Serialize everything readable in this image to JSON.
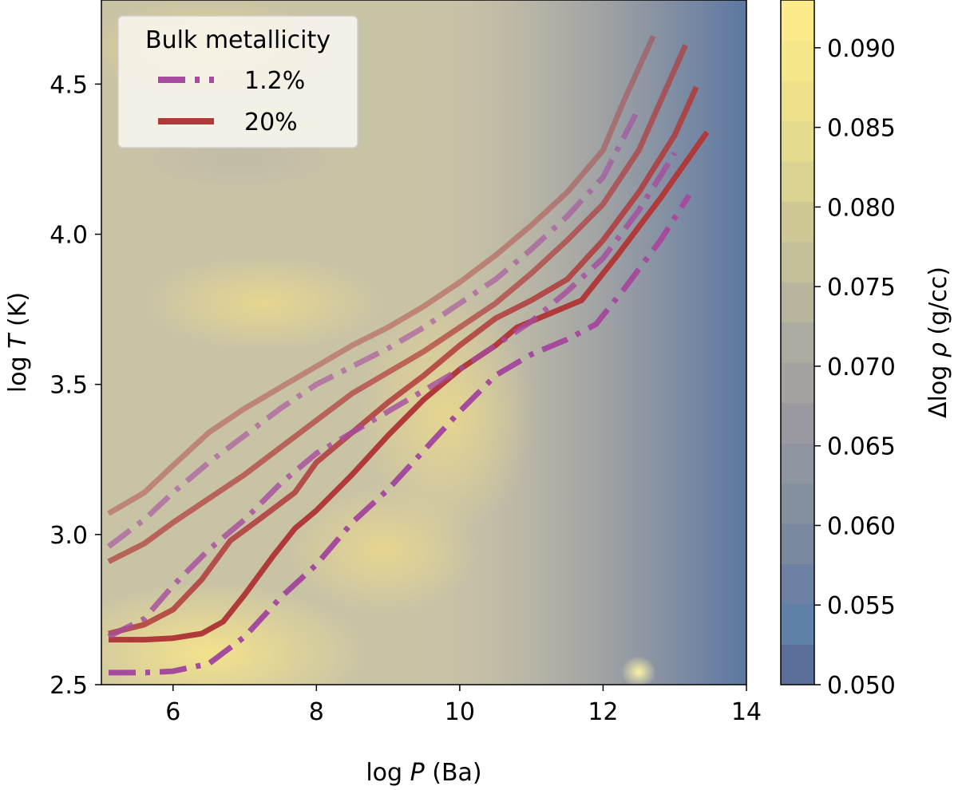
{
  "chart_data": {
    "type": "line",
    "xlabel_base": "log",
    "xlabel_var": "P",
    "xlabel_unit": "(Ba)",
    "ylabel_base": "log",
    "ylabel_var": "T",
    "ylabel_unit": "(K)",
    "colorbar_label_prefix": "Δlog",
    "colorbar_label_var": "ρ",
    "colorbar_label_unit": "(g/cc)",
    "xlim": [
      5,
      14
    ],
    "ylim": [
      2.5,
      4.78
    ],
    "xticks": [
      "6",
      "8",
      "10",
      "12",
      "14"
    ],
    "xtick_values": [
      6,
      8,
      10,
      12,
      14
    ],
    "yticks": [
      "2.5",
      "3.0",
      "3.5",
      "4.0",
      "4.5"
    ],
    "ytick_values": [
      2.5,
      3.0,
      3.5,
      4.0,
      4.5
    ],
    "colorbar_range": [
      0.05,
      0.093
    ],
    "colorbar_ticks": [
      "0.050",
      "0.055",
      "0.060",
      "0.065",
      "0.070",
      "0.075",
      "0.080",
      "0.085",
      "0.090"
    ],
    "colorbar_tick_values": [
      0.05,
      0.055,
      0.06,
      0.065,
      0.07,
      0.075,
      0.08,
      0.085,
      0.09
    ],
    "colors": {
      "metal_1_2": "#a54b9e",
      "metal_20": "#b03a3a",
      "cmap_low": "#5a7099",
      "cmap_mid": "#b2b0a6",
      "cmap_high": "#f8e88a"
    },
    "legend": {
      "title": "Bulk metallicity",
      "entries": [
        {
          "label": "1.2%",
          "style": "dashdot",
          "color": "#a54b9e"
        },
        {
          "label": "20%",
          "style": "solid",
          "color": "#b03a3a"
        }
      ]
    },
    "series": [
      {
        "name": "20%",
        "style": "solid",
        "opacity": 1.0,
        "x": [
          5.1,
          5.6,
          6.0,
          6.4,
          6.7,
          7.0,
          7.4,
          7.7,
          8.0,
          8.5,
          9.0,
          9.5,
          10.0,
          10.5,
          10.8,
          11.2,
          11.7,
          12.2,
          12.8,
          13.45
        ],
        "y": [
          2.65,
          2.65,
          2.655,
          2.67,
          2.71,
          2.8,
          2.93,
          3.02,
          3.08,
          3.2,
          3.33,
          3.45,
          3.55,
          3.63,
          3.69,
          3.73,
          3.78,
          3.93,
          4.12,
          4.34
        ]
      },
      {
        "name": "1.2%",
        "style": "dashdot",
        "opacity": 1.0,
        "x": [
          5.1,
          5.6,
          6.0,
          6.5,
          7.0,
          7.5,
          8.0,
          8.5,
          9.0,
          9.5,
          10.0,
          10.5,
          11.0,
          11.5,
          11.9,
          12.3,
          12.8,
          13.2
        ],
        "y": [
          2.54,
          2.54,
          2.545,
          2.57,
          2.66,
          2.79,
          2.9,
          3.04,
          3.15,
          3.28,
          3.41,
          3.53,
          3.6,
          3.65,
          3.7,
          3.82,
          3.98,
          4.13
        ]
      },
      {
        "name": "20%",
        "style": "solid",
        "opacity": 0.85,
        "x": [
          5.1,
          5.6,
          6.0,
          6.4,
          6.8,
          7.2,
          7.7,
          8.0,
          8.5,
          9.0,
          9.5,
          10.0,
          10.5,
          11.0,
          11.5,
          12.0,
          12.5,
          13.0,
          13.3
        ],
        "y": [
          2.67,
          2.7,
          2.75,
          2.85,
          2.98,
          3.05,
          3.14,
          3.24,
          3.34,
          3.44,
          3.53,
          3.63,
          3.72,
          3.78,
          3.85,
          3.98,
          4.14,
          4.33,
          4.49
        ]
      },
      {
        "name": "1.2%",
        "style": "dashdot",
        "opacity": 0.8,
        "x": [
          5.1,
          5.6,
          6.0,
          6.5,
          7.0,
          7.5,
          8.0,
          8.5,
          9.0,
          9.5,
          10.0,
          10.5,
          11.0,
          11.5,
          12.0,
          12.5,
          13.0
        ],
        "y": [
          2.66,
          2.72,
          2.83,
          2.95,
          3.05,
          3.17,
          3.27,
          3.34,
          3.41,
          3.48,
          3.55,
          3.63,
          3.71,
          3.81,
          3.92,
          4.08,
          4.27
        ]
      },
      {
        "name": "20%",
        "style": "solid",
        "opacity": 0.7,
        "x": [
          5.1,
          5.6,
          6.0,
          6.5,
          7.0,
          7.5,
          8.0,
          8.5,
          9.0,
          9.5,
          10.0,
          10.5,
          11.0,
          11.5,
          12.0,
          12.5,
          13.15
        ],
        "y": [
          2.91,
          2.97,
          3.04,
          3.12,
          3.2,
          3.29,
          3.38,
          3.47,
          3.54,
          3.61,
          3.69,
          3.77,
          3.87,
          3.98,
          4.1,
          4.28,
          4.63
        ]
      },
      {
        "name": "1.2%",
        "style": "dashdot",
        "opacity": 0.6,
        "x": [
          5.1,
          5.6,
          6.0,
          6.5,
          7.0,
          7.5,
          8.0,
          8.5,
          9.0,
          9.5,
          10.0,
          10.5,
          11.0,
          11.5,
          12.0,
          12.5
        ],
        "y": [
          2.96,
          3.05,
          3.14,
          3.24,
          3.33,
          3.42,
          3.5,
          3.56,
          3.62,
          3.69,
          3.77,
          3.85,
          3.95,
          4.06,
          4.19,
          4.42
        ]
      },
      {
        "name": "20%",
        "style": "solid",
        "opacity": 0.45,
        "x": [
          5.1,
          5.6,
          6.0,
          6.5,
          7.0,
          7.5,
          8.0,
          8.5,
          9.0,
          9.5,
          10.0,
          10.5,
          11.0,
          11.5,
          12.0,
          12.3,
          12.7
        ],
        "y": [
          3.07,
          3.14,
          3.23,
          3.34,
          3.42,
          3.49,
          3.56,
          3.63,
          3.69,
          3.76,
          3.84,
          3.93,
          4.03,
          4.14,
          4.28,
          4.45,
          4.66
        ]
      }
    ]
  }
}
